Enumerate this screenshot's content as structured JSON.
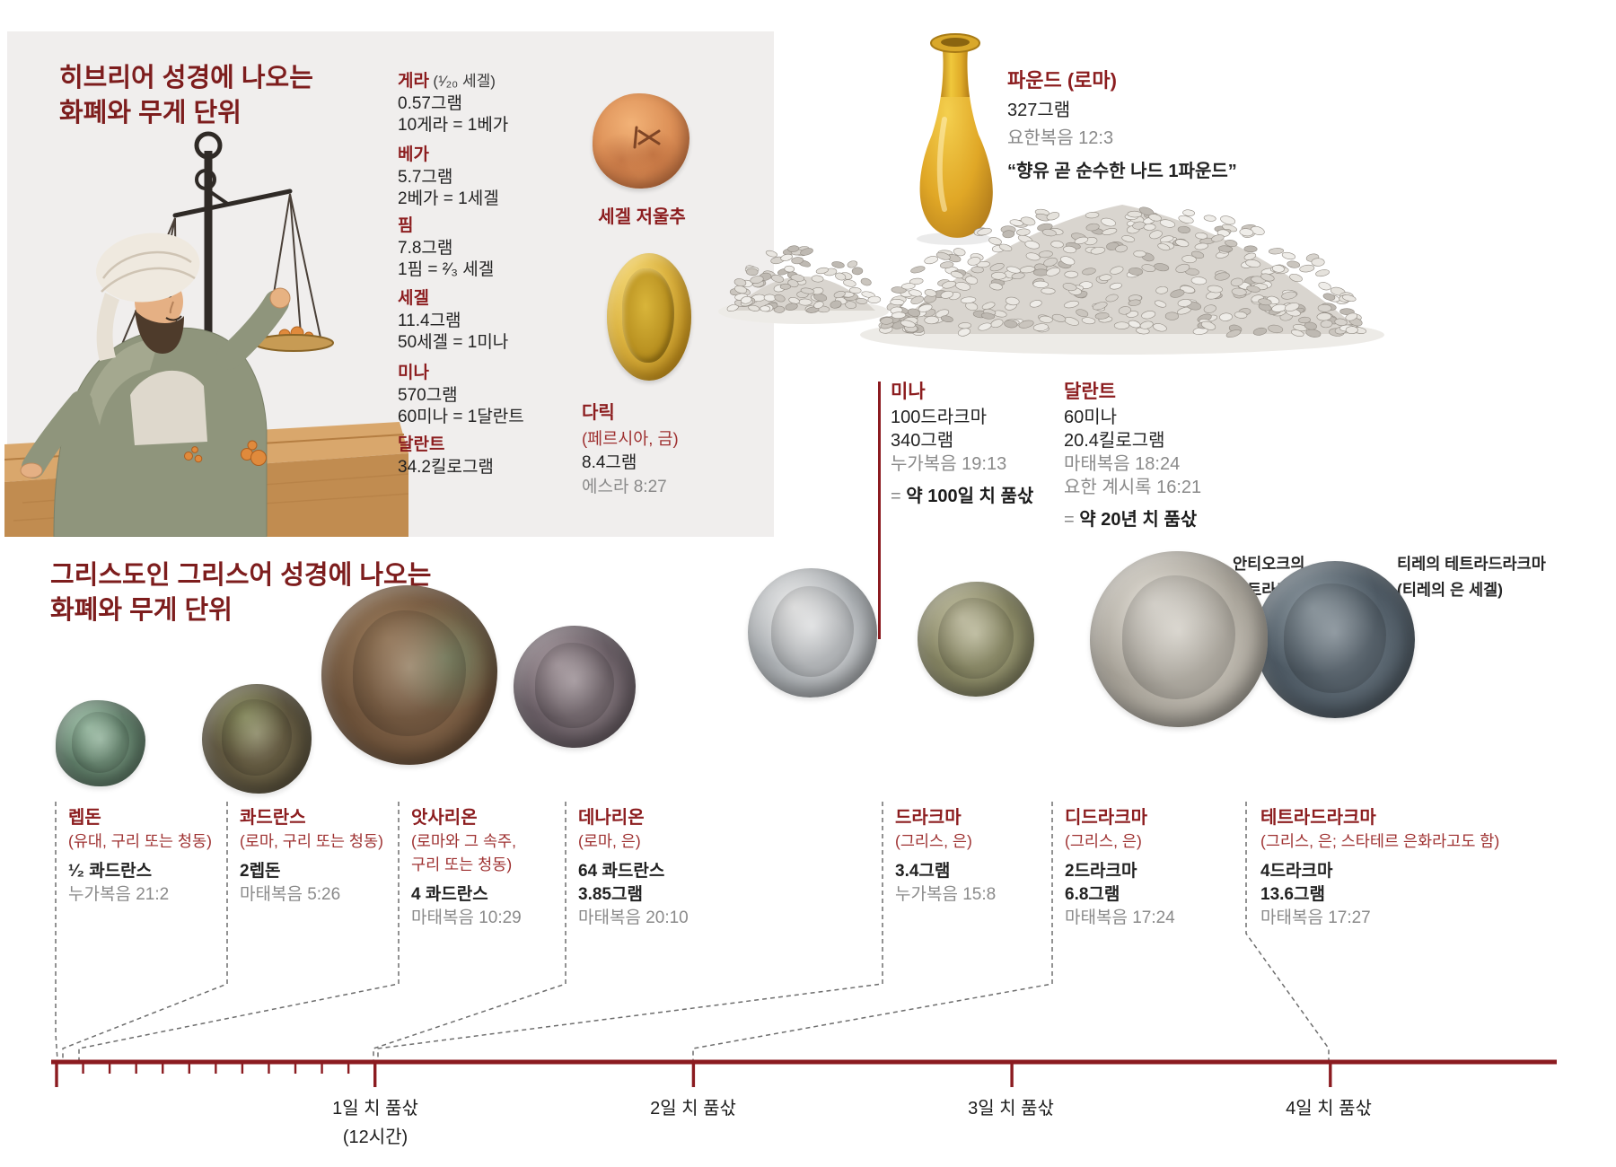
{
  "colors": {
    "heading_red": "#7d1d1d",
    "unit_red": "#8c1d1f",
    "origin_red": "#9e3030",
    "ruler_red": "#8b1b20",
    "body_text": "#222222",
    "reference_gray": "#8a8a8a",
    "panel_bg": "#f0eeed"
  },
  "hebrew": {
    "title_line1": "히브리어 성경에 나오는",
    "title_line2": "화폐와 무게 단위",
    "units": [
      {
        "name": "게라",
        "qualifier": "(¹⁄₂₀ 세겔)",
        "line1": "0.57그램",
        "line2": "10게라 = 1베가"
      },
      {
        "name": "베가",
        "line1": "5.7그램",
        "line2": "2베가 = 1세겔"
      },
      {
        "name": "핌",
        "line1": "7.8그램",
        "line2": "1핌 = ²⁄₃ 세겔"
      },
      {
        "name": "세겔",
        "line1": "11.4그램",
        "line2": "50세겔 = 1미나"
      },
      {
        "name": "미나",
        "line1": "570그램",
        "line2": "60미나 = 1달란트"
      },
      {
        "name": "달란트",
        "line1": "34.2킬로그램",
        "line2": ""
      }
    ],
    "shekel_weight_caption": "세겔 저울추",
    "daric": {
      "name": "다릭",
      "origin": "(페르시아, 금)",
      "weight": "8.4그램",
      "ref": "에스라 8:27"
    }
  },
  "pound": {
    "name": "파운드 (로마)",
    "weight": "327그램",
    "ref": "요한복음 12:3",
    "quote": "“향유 곧 순수한 나드 1파운드”"
  },
  "mina": {
    "name": "미나",
    "line1": "100드라크마",
    "line2": "340그램",
    "ref": "누가복음 19:13",
    "equiv_sign": "=",
    "equiv": "약 100일 치 품삯"
  },
  "talent": {
    "name": "달란트",
    "line1": "60미나",
    "line2": "20.4킬로그램",
    "ref1": "마태복음 18:24",
    "ref2": "요한 계시록 16:21",
    "equiv_sign": "=",
    "equiv": "약 20년 치 품삯"
  },
  "greek": {
    "title_line1": "그리스도인 그리스어 성경에 나오는",
    "title_line2": "화폐와 무게 단위",
    "tetradrachma_labels": {
      "antioch_line1": "안티오크의",
      "antioch_line2": "테트라드라크마",
      "tyre_line1": "티레의 테트라드라크마",
      "tyre_line2": "(티레의 은 세겔)"
    },
    "coins": [
      {
        "name": "렙돈",
        "origin": "(유대, 구리 또는 청동)",
        "line1": "¹⁄₂ 콰드란스",
        "ref": "누가복음 21:2"
      },
      {
        "name": "콰드란스",
        "origin": "(로마, 구리 또는 청동)",
        "line1": "2렙돈",
        "ref": "마태복음 5:26"
      },
      {
        "name": "앗사리온",
        "origin_line1": "(로마와 그 속주,",
        "origin_line2": "구리 또는 청동)",
        "line1": "4 콰드란스",
        "ref": "마태복음 10:29"
      },
      {
        "name": "데나리온",
        "origin": "(로마, 은)",
        "line1": "64 콰드란스",
        "line2": "3.85그램",
        "ref": "마태복음 20:10"
      },
      {
        "name": "드라크마",
        "origin": "(그리스, 은)",
        "line1": "3.4그램",
        "ref": "누가복음 15:8"
      },
      {
        "name": "디드라크마",
        "origin": "(그리스, 은)",
        "line1": "2드라크마",
        "line2": "6.8그램",
        "ref": "마태복음 17:24"
      },
      {
        "name": "테트라드라크마",
        "origin": "(그리스, 은; 스타테르 은화라고도 함)",
        "line1": "4드라크마",
        "line2": "13.6그램",
        "ref": "마태복음 17:27"
      }
    ]
  },
  "timeline": {
    "day1": "1일 치 품삯",
    "day1_sub": "(12시간)",
    "day2": "2일 치 품삯",
    "day3": "3일 치 품삯",
    "day4": "4일 치 품삯"
  }
}
